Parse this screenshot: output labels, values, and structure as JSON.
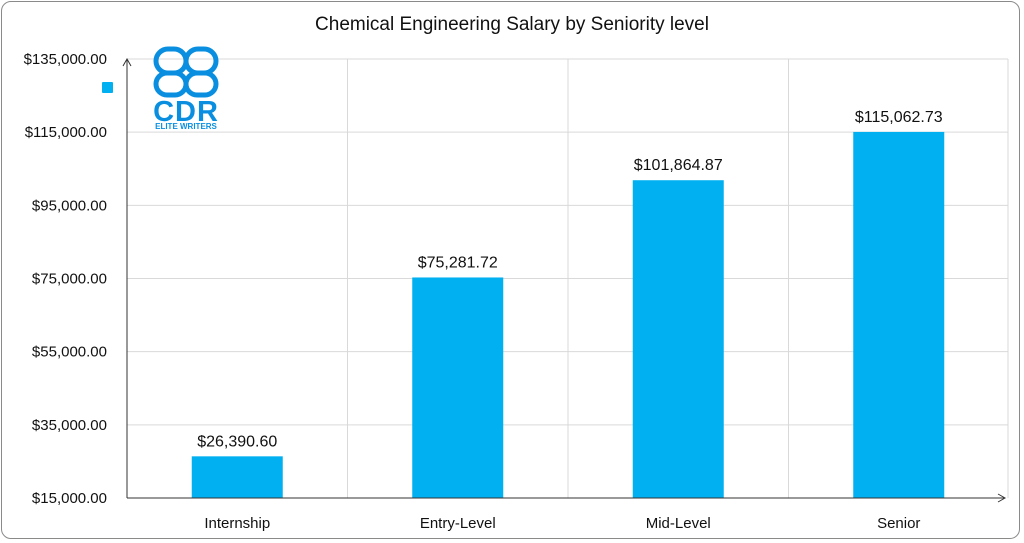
{
  "chart_data": {
    "type": "bar",
    "title": "Chemical Engineering Salary by Seniority level",
    "categories": [
      "Internship",
      "Entry-Level",
      "Mid-Level",
      "Senior"
    ],
    "values": [
      26390.6,
      75281.72,
      101864.87,
      115062.73
    ],
    "data_labels": [
      "$26,390.60",
      "$75,281.72",
      "$101,864.87",
      "$115,062.73"
    ],
    "ylim": [
      15000,
      135000
    ],
    "yticks": [
      15000,
      35000,
      55000,
      75000,
      95000,
      115000,
      135000
    ],
    "ytick_labels": [
      "$15,000.00",
      "$35,000.00",
      "$55,000.00",
      "$75,000.00",
      "$95,000.00",
      "$115,000.00",
      "$135,000.00"
    ],
    "xlabel": "",
    "ylabel": "",
    "grid": true,
    "bar_color": "#00b0f0",
    "legend_swatch_color": "#00b0f0"
  },
  "logo": {
    "text": "CDR",
    "subtext": "ELITE WRITERS",
    "color": "#0a8fe0"
  }
}
